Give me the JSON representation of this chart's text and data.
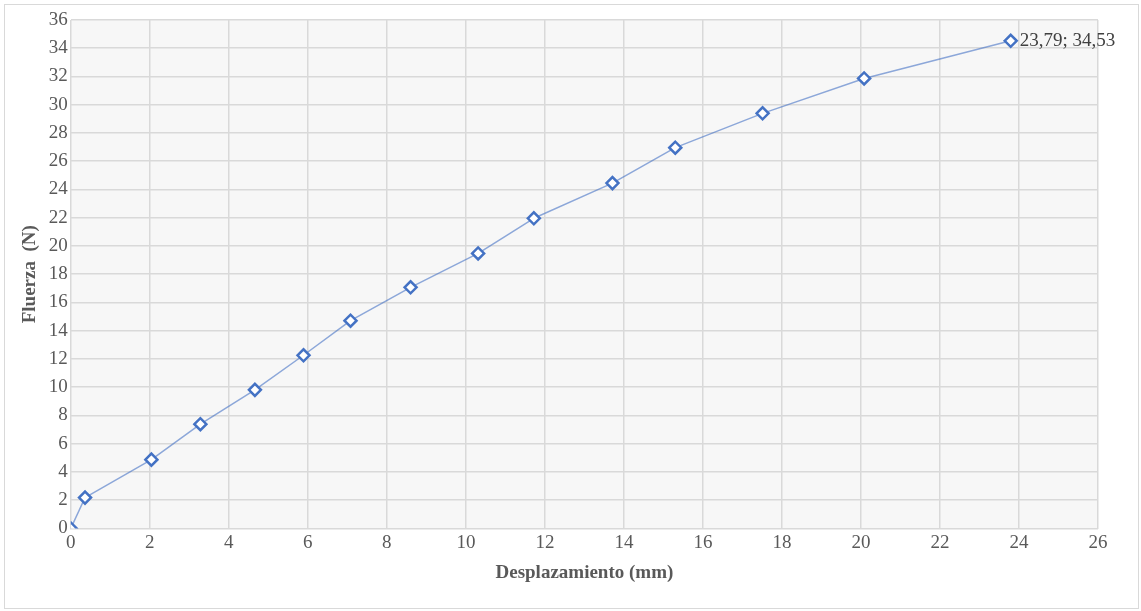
{
  "chart_data": {
    "type": "scatter",
    "xlabel": "Desplazamiento (mm)",
    "ylabel": "Fluerza  (N)",
    "x": [
      0,
      0.36,
      2.04,
      3.28,
      4.66,
      5.89,
      7.08,
      8.6,
      10.31,
      11.72,
      13.71,
      15.3,
      17.51,
      20.08,
      23.79
    ],
    "series": [
      {
        "type": "line",
        "color": "#4472c4",
        "values": [
          0,
          2.18,
          4.87,
          7.38,
          9.81,
          12.26,
          14.71,
          17.07,
          19.47,
          21.96,
          24.45,
          26.96,
          29.39,
          31.86,
          34.53
        ]
      }
    ],
    "marker": "diamond",
    "xlim": [
      0,
      26
    ],
    "xticks": [
      0,
      2,
      4,
      6,
      8,
      10,
      12,
      14,
      16,
      18,
      20,
      22,
      24,
      26
    ],
    "ylim": [
      0,
      36
    ],
    "yticks": [
      0,
      2,
      4,
      6,
      8,
      10,
      12,
      14,
      16,
      18,
      20,
      22,
      24,
      26,
      28,
      30,
      32,
      34,
      36
    ],
    "grid": true,
    "annotations": [
      {
        "text": "23,79; 34,53",
        "x": 23.79,
        "y": 34.53
      }
    ]
  }
}
